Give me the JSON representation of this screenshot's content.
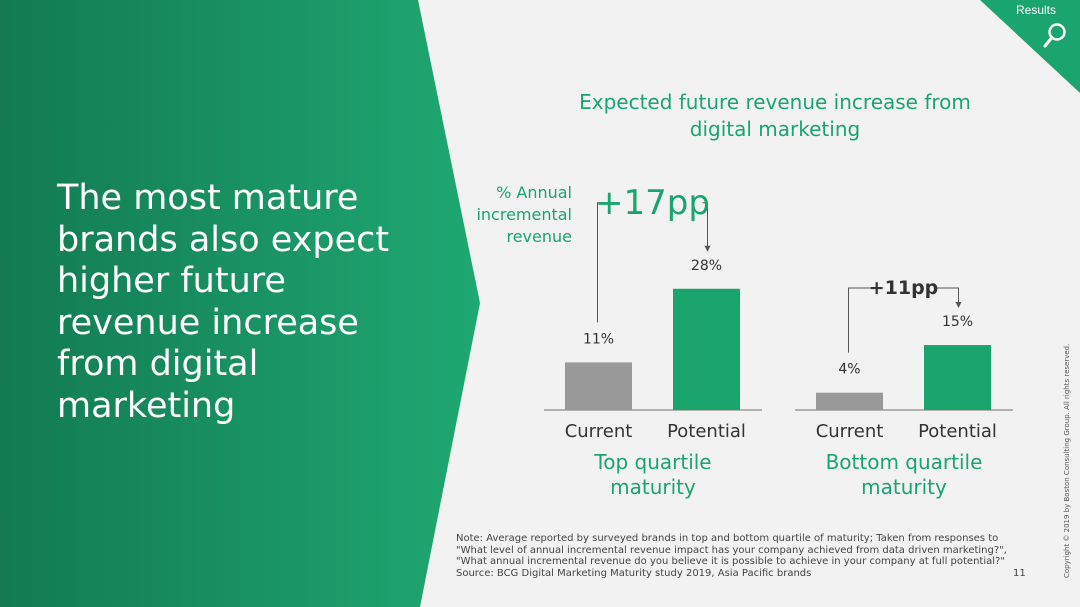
{
  "slide": {
    "headline": "The most mature brands also expect higher future revenue increase from digital marketing",
    "tag": "Results",
    "tag_icon": "search-icon",
    "copyright": "Copyright © 2019 by Boston Consulting Group. All rights reserved.",
    "page_number": "11",
    "note_lines": [
      "Note: Average reported by surveyed brands in top and bottom quartile of maturity; Taken from responses to",
      "\"What level of annual incremental revenue impact has your company achieved from data driven marketing?\",",
      "\"What annual incremental revenue do you believe it is possible to achieve in your company at full potential?\"",
      "Source: BCG Digital Marketing Maturity study 2019, Asia Pacific brands"
    ],
    "colors": {
      "green": "#1aa56f",
      "dark_green": "#147a52",
      "gray_bar": "#999999",
      "background": "#f2f2f2"
    }
  },
  "chart_data": {
    "type": "bar",
    "title": "Expected future revenue increase from digital marketing",
    "ylabel": "% Annual incremental revenue",
    "categories": [
      "Current",
      "Potential"
    ],
    "unit": "%",
    "ylim": [
      0,
      30
    ],
    "grid": false,
    "groups": [
      {
        "name": "Top quartile maturity",
        "values": [
          11,
          28
        ],
        "labels": [
          "11%",
          "28%"
        ],
        "delta_label": "+17pp"
      },
      {
        "name": "Bottom quartile maturity",
        "values": [
          4,
          15
        ],
        "labels": [
          "4%",
          "15%"
        ],
        "delta_label": "+11pp"
      }
    ],
    "bar_colors": [
      "#999999",
      "#1aa56f"
    ]
  }
}
